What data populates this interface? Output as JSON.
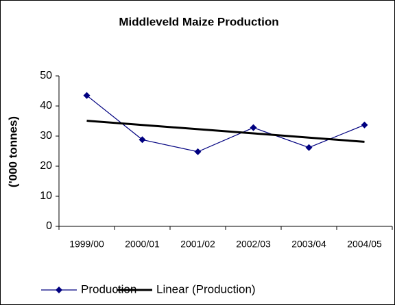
{
  "chart_data": {
    "type": "line",
    "title": "Middleveld Maize Production",
    "y_label": "('000 tonnes)",
    "categories": [
      "1999/00",
      "2000/01",
      "2001/02",
      "2002/03",
      "2003/04",
      "2004/05"
    ],
    "series": [
      {
        "name": "Production",
        "color": "#000080",
        "values": [
          43.5,
          28.8,
          24.8,
          32.8,
          26.2,
          33.7
        ]
      },
      {
        "name": "Linear (Production)",
        "color": "#000000",
        "values": [
          35.1,
          33.7,
          32.3,
          30.9,
          29.5,
          28.1
        ]
      }
    ],
    "ylim": [
      0,
      50
    ],
    "yticks": [
      0,
      10,
      20,
      30,
      40,
      50
    ],
    "grid": false
  }
}
